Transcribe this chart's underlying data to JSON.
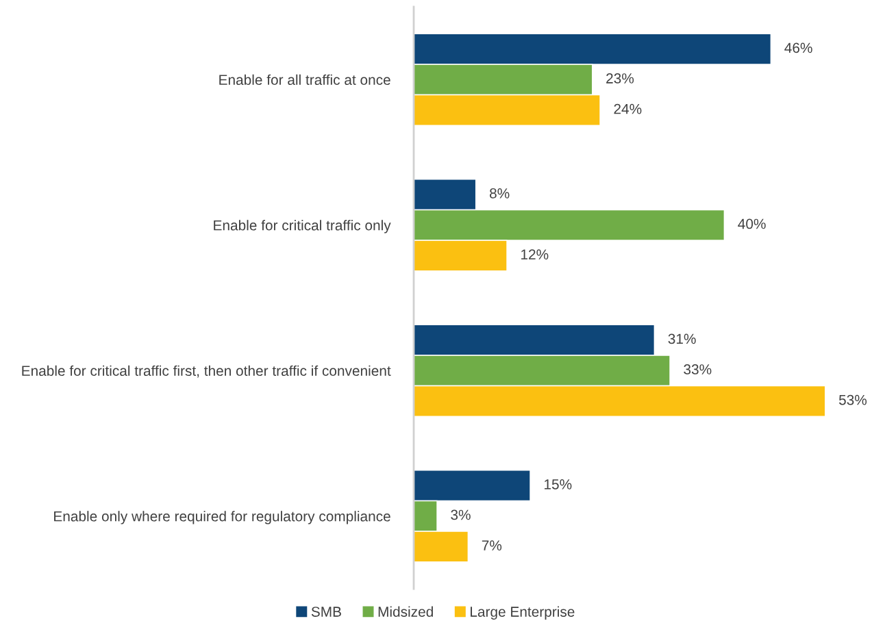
{
  "chart_data": {
    "type": "bar",
    "orientation": "horizontal",
    "categories": [
      "Enable for all traffic at once",
      "Enable for critical traffic only",
      "Enable for critical traffic first, then other traffic if convenient",
      "Enable only where required for regulatory compliance"
    ],
    "series": [
      {
        "name": "SMB",
        "color": "#0e4678",
        "values": [
          46,
          8,
          31,
          15
        ],
        "value_labels": [
          "46%",
          "8%",
          "31%",
          "15%"
        ]
      },
      {
        "name": "Midsized",
        "color": "#70ad47",
        "values": [
          23,
          40,
          33,
          3
        ],
        "value_labels": [
          "23%",
          "40%",
          "33%",
          "3%"
        ]
      },
      {
        "name": "Large Enterprise",
        "color": "#fbc011",
        "values": [
          24,
          12,
          53,
          7
        ],
        "value_labels": [
          "24%",
          "12%",
          "53%",
          "7%"
        ]
      }
    ],
    "legend": "bottom",
    "grid": false,
    "tick_labels": "y"
  }
}
